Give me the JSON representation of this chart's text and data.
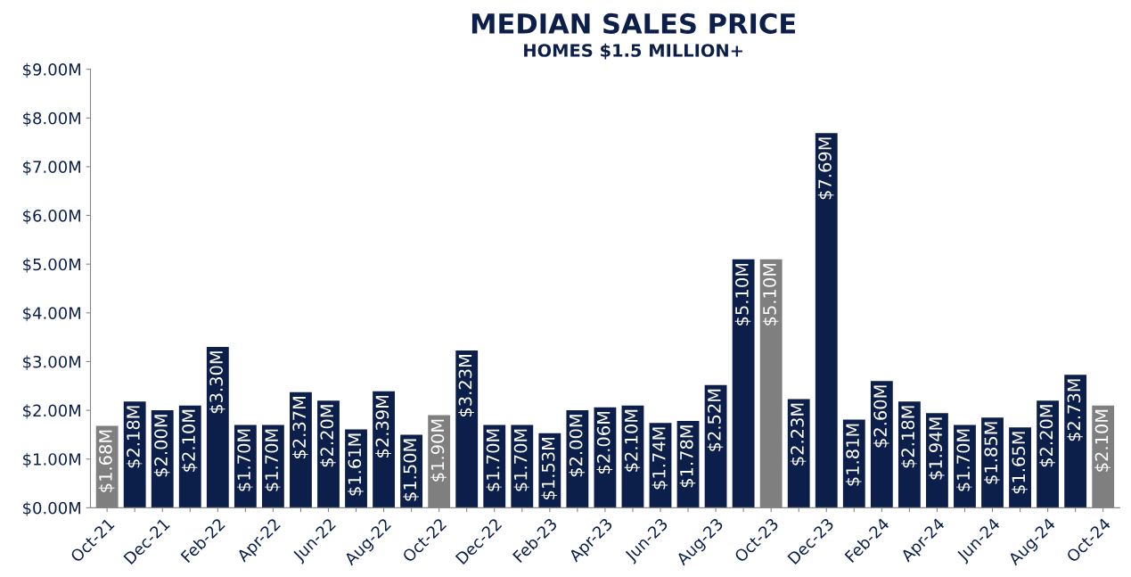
{
  "chart_data": {
    "type": "bar",
    "title": "MEDIAN SALES PRICE",
    "subtitle": "HOMES $1.5 MILLION+",
    "categories": [
      "Oct-21",
      null,
      "Dec-21",
      null,
      "Feb-22",
      null,
      "Apr-22",
      null,
      "Jun-22",
      null,
      "Aug-22",
      null,
      "Oct-22",
      null,
      "Dec-22",
      null,
      "Feb-23",
      null,
      "Apr-23",
      null,
      "Jun-23",
      null,
      "Aug-23",
      null,
      "Oct-23",
      null,
      "Dec-23",
      null,
      "Feb-24",
      null,
      "Apr-24",
      null,
      "Jun-24",
      null,
      "Aug-24",
      null,
      "Oct-24"
    ],
    "values": [
      1.68,
      2.18,
      2.0,
      2.1,
      3.3,
      1.7,
      1.7,
      2.37,
      2.2,
      1.61,
      2.39,
      1.5,
      1.9,
      3.23,
      1.7,
      1.7,
      1.53,
      2.0,
      2.06,
      2.1,
      1.74,
      1.78,
      2.52,
      5.1,
      5.1,
      2.23,
      7.69,
      1.81,
      2.6,
      2.18,
      1.94,
      1.7,
      1.85,
      1.65,
      2.2,
      2.73,
      2.1
    ],
    "colors": [
      "#7f7f7f",
      "#0c1f4a",
      "#0c1f4a",
      "#0c1f4a",
      "#0c1f4a",
      "#0c1f4a",
      "#0c1f4a",
      "#0c1f4a",
      "#0c1f4a",
      "#0c1f4a",
      "#0c1f4a",
      "#0c1f4a",
      "#7f7f7f",
      "#0c1f4a",
      "#0c1f4a",
      "#0c1f4a",
      "#0c1f4a",
      "#0c1f4a",
      "#0c1f4a",
      "#0c1f4a",
      "#0c1f4a",
      "#0c1f4a",
      "#0c1f4a",
      "#0c1f4a",
      "#7f7f7f",
      "#0c1f4a",
      "#0c1f4a",
      "#0c1f4a",
      "#0c1f4a",
      "#0c1f4a",
      "#0c1f4a",
      "#0c1f4a",
      "#0c1f4a",
      "#0c1f4a",
      "#0c1f4a",
      "#0c1f4a",
      "#7f7f7f"
    ],
    "value_labels": [
      "$1.68M",
      "$2.18M",
      "$2.00M",
      "$2.10M",
      "$3.30M",
      "$1.70M",
      "$1.70M",
      "$2.37M",
      "$2.20M",
      "$1.61M",
      "$2.39M",
      "$1.50M",
      "$1.90M",
      "$3.23M",
      "$1.70M",
      "$1.70M",
      "$1.53M",
      "$2.00M",
      "$2.06M",
      "$2.10M",
      "$1.74M",
      "$1.78M",
      "$2.52M",
      "$5.10M",
      "$5.10M",
      "$2.23M",
      "$7.69M",
      "$1.81M",
      "$2.60M",
      "$2.18M",
      "$1.94M",
      "$1.70M",
      "$1.85M",
      "$1.65M",
      "$2.20M",
      "$2.73M",
      "$2.10M"
    ],
    "ylim": [
      0,
      9
    ],
    "yticks": [
      {
        "value": 0,
        "label": "$0.00M"
      },
      {
        "value": 1,
        "label": "$1.00M"
      },
      {
        "value": 2,
        "label": "$2.00M"
      },
      {
        "value": 3,
        "label": "$3.00M"
      },
      {
        "value": 4,
        "label": "$4.00M"
      },
      {
        "value": 5,
        "label": "$5.00M"
      },
      {
        "value": 6,
        "label": "$6.00M"
      },
      {
        "value": 7,
        "label": "$7.00M"
      },
      {
        "value": 8,
        "label": "$8.00M"
      },
      {
        "value": 9,
        "label": "$9.00M"
      }
    ],
    "grid": false
  }
}
